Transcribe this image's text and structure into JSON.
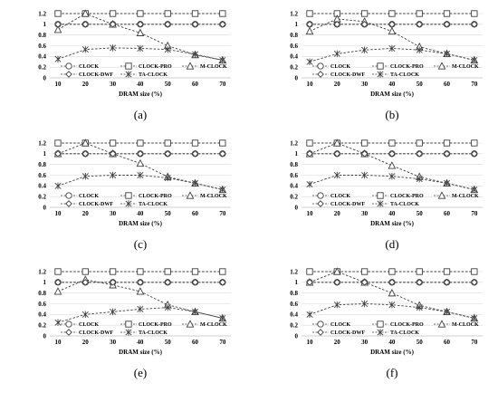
{
  "figure": {
    "background": "#ffffff",
    "line_color": "#404040"
  },
  "chart_data": [
    {
      "type": "line",
      "caption": "(a)",
      "x": [
        10,
        20,
        30,
        40,
        50,
        60,
        70
      ],
      "xlabel": "DRAM size (%)",
      "ylabel": "",
      "ylim": [
        0,
        1.2
      ],
      "yticks": [
        "0",
        "0.2",
        "0.4",
        "0.6",
        "0.8",
        "1",
        "1.2"
      ],
      "grid": true,
      "legend_position": "bottom",
      "series": [
        {
          "name": "CLOCK",
          "marker": "circle",
          "values": [
            1,
            1,
            1,
            1,
            1,
            1,
            1
          ]
        },
        {
          "name": "CLOCK-PRO",
          "marker": "square",
          "values": [
            1.2,
            1.2,
            1.2,
            1.2,
            1.2,
            1.2,
            1.2
          ]
        },
        {
          "name": "M-CLOCK",
          "marker": "triangle",
          "values": [
            0.9,
            1.2,
            1.0,
            0.84,
            0.6,
            0.43,
            0.33
          ]
        },
        {
          "name": "CLOCK-DWF",
          "marker": "diamond",
          "values": [
            1,
            1,
            1,
            1,
            1,
            1,
            1
          ]
        },
        {
          "name": "TA-CLOCK",
          "marker": "asterisk",
          "values": [
            0.35,
            0.53,
            0.56,
            0.55,
            0.53,
            0.44,
            0.33
          ]
        }
      ]
    },
    {
      "type": "line",
      "caption": "(b)",
      "x": [
        10,
        20,
        30,
        40,
        50,
        60,
        70
      ],
      "xlabel": "DRAM size (%)",
      "ylabel": "",
      "ylim": [
        0,
        1.2
      ],
      "yticks": [
        "0",
        "0.2",
        "0.4",
        "0.6",
        "0.8",
        "1",
        "1.2"
      ],
      "grid": true,
      "legend_position": "bottom",
      "series": [
        {
          "name": "CLOCK",
          "marker": "circle",
          "values": [
            1,
            1,
            1,
            1,
            1,
            1,
            1
          ]
        },
        {
          "name": "CLOCK-PRO",
          "marker": "square",
          "values": [
            1.2,
            1.2,
            1.2,
            1.2,
            1.2,
            1.2,
            1.2
          ]
        },
        {
          "name": "M-CLOCK",
          "marker": "triangle",
          "values": [
            0.87,
            1.1,
            1.05,
            0.87,
            0.58,
            0.45,
            0.33
          ]
        },
        {
          "name": "CLOCK-DWF",
          "marker": "diamond",
          "values": [
            1,
            1,
            1,
            1,
            1,
            1,
            1
          ]
        },
        {
          "name": "TA-CLOCK",
          "marker": "asterisk",
          "values": [
            0.3,
            0.45,
            0.52,
            0.55,
            0.52,
            0.45,
            0.33
          ]
        }
      ]
    },
    {
      "type": "line",
      "caption": "(c)",
      "x": [
        10,
        20,
        30,
        40,
        50,
        60,
        70
      ],
      "xlabel": "DRAM size (%)",
      "ylabel": "",
      "ylim": [
        0,
        1.2
      ],
      "yticks": [
        "0",
        "0.2",
        "0.4",
        "0.6",
        "0.8",
        "1",
        "1.2"
      ],
      "grid": true,
      "legend_position": "bottom",
      "series": [
        {
          "name": "CLOCK",
          "marker": "circle",
          "values": [
            1,
            1,
            1,
            1,
            1,
            1,
            1
          ]
        },
        {
          "name": "CLOCK-PRO",
          "marker": "square",
          "values": [
            1.2,
            1.2,
            1.2,
            1.2,
            1.2,
            1.2,
            1.2
          ]
        },
        {
          "name": "M-CLOCK",
          "marker": "triangle",
          "values": [
            1.0,
            1.2,
            1.0,
            0.82,
            0.57,
            0.45,
            0.33
          ]
        },
        {
          "name": "CLOCK-DWF",
          "marker": "diamond",
          "values": [
            1,
            1,
            1,
            1,
            1,
            1,
            1
          ]
        },
        {
          "name": "TA-CLOCK",
          "marker": "asterisk",
          "values": [
            0.4,
            0.58,
            0.6,
            0.6,
            0.55,
            0.45,
            0.33
          ]
        }
      ]
    },
    {
      "type": "line",
      "caption": "(d)",
      "x": [
        10,
        20,
        30,
        40,
        50,
        60,
        70
      ],
      "xlabel": "DRAM size (%)",
      "ylabel": "",
      "ylim": [
        0,
        1.2
      ],
      "yticks": [
        "0",
        "0.2",
        "0.4",
        "0.6",
        "0.8",
        "1",
        "1.2"
      ],
      "grid": true,
      "legend_position": "bottom",
      "series": [
        {
          "name": "CLOCK",
          "marker": "circle",
          "values": [
            1,
            1,
            1,
            1,
            1,
            1,
            1
          ]
        },
        {
          "name": "CLOCK-PRO",
          "marker": "square",
          "values": [
            1.2,
            1.2,
            1.2,
            1.2,
            1.2,
            1.2,
            1.2
          ]
        },
        {
          "name": "M-CLOCK",
          "marker": "triangle",
          "values": [
            1.0,
            1.2,
            1.0,
            0.78,
            0.57,
            0.45,
            0.33
          ]
        },
        {
          "name": "CLOCK-DWF",
          "marker": "diamond",
          "values": [
            1,
            1,
            1,
            1,
            1,
            1,
            1
          ]
        },
        {
          "name": "TA-CLOCK",
          "marker": "asterisk",
          "values": [
            0.43,
            0.6,
            0.6,
            0.58,
            0.53,
            0.45,
            0.33
          ]
        }
      ]
    },
    {
      "type": "line",
      "caption": "(e)",
      "x": [
        10,
        20,
        30,
        40,
        50,
        60,
        70
      ],
      "xlabel": "DRAM size (%)",
      "ylabel": "",
      "ylim": [
        0,
        1.2
      ],
      "yticks": [
        "0",
        "0.2",
        "0.4",
        "0.6",
        "0.8",
        "1",
        "1.2"
      ],
      "grid": true,
      "legend_position": "bottom",
      "series": [
        {
          "name": "CLOCK",
          "marker": "circle",
          "values": [
            1,
            1,
            1,
            1,
            1,
            1,
            1
          ]
        },
        {
          "name": "CLOCK-PRO",
          "marker": "square",
          "values": [
            1.2,
            1.2,
            1.2,
            1.2,
            1.2,
            1.2,
            1.2
          ]
        },
        {
          "name": "M-CLOCK",
          "marker": "triangle",
          "values": [
            0.83,
            1.05,
            0.95,
            0.83,
            0.58,
            0.45,
            0.33
          ]
        },
        {
          "name": "CLOCK-DWF",
          "marker": "diamond",
          "values": [
            1,
            1,
            1,
            1,
            1,
            1,
            1
          ]
        },
        {
          "name": "TA-CLOCK",
          "marker": "asterisk",
          "values": [
            0.25,
            0.4,
            0.45,
            0.5,
            0.53,
            0.45,
            0.33
          ]
        }
      ]
    },
    {
      "type": "line",
      "caption": "(f)",
      "x": [
        10,
        20,
        30,
        40,
        50,
        60,
        70
      ],
      "xlabel": "DRAM size (%)",
      "ylabel": "",
      "ylim": [
        0,
        1.2
      ],
      "yticks": [
        "0",
        "0.2",
        "0.4",
        "0.6",
        "0.8",
        "1",
        "1.2"
      ],
      "grid": true,
      "legend_position": "bottom",
      "series": [
        {
          "name": "CLOCK",
          "marker": "circle",
          "values": [
            1,
            1,
            1,
            1,
            1,
            1,
            1
          ]
        },
        {
          "name": "CLOCK-PRO",
          "marker": "square",
          "values": [
            1.2,
            1.2,
            1.2,
            1.2,
            1.2,
            1.2,
            1.2
          ]
        },
        {
          "name": "M-CLOCK",
          "marker": "triangle",
          "values": [
            1.0,
            1.2,
            1.0,
            0.8,
            0.57,
            0.45,
            0.33
          ]
        },
        {
          "name": "CLOCK-DWF",
          "marker": "diamond",
          "values": [
            1,
            1,
            1,
            1,
            1,
            1,
            1
          ]
        },
        {
          "name": "TA-CLOCK",
          "marker": "asterisk",
          "values": [
            0.4,
            0.58,
            0.6,
            0.58,
            0.53,
            0.45,
            0.33
          ]
        }
      ]
    }
  ]
}
